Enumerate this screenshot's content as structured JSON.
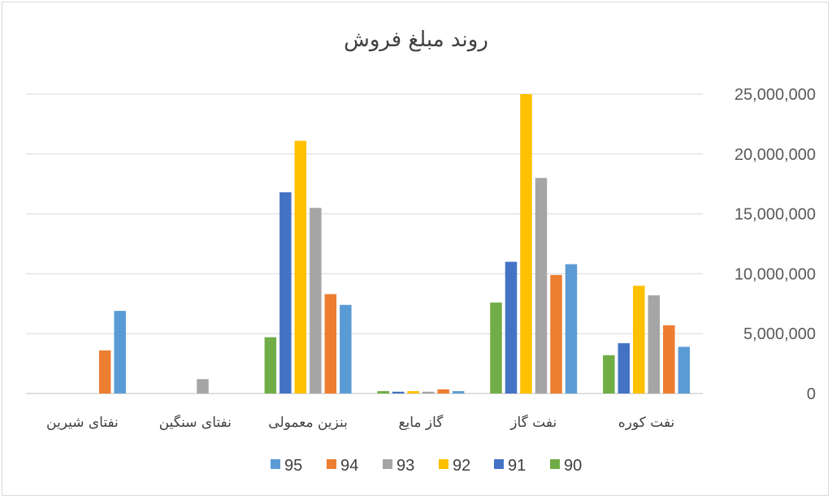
{
  "chart_data": {
    "type": "bar",
    "title": "روند مبلغ فروش",
    "xlabel": "",
    "ylabel": "",
    "ylim": [
      0,
      25000000
    ],
    "y_ticks": [
      "0",
      "5,000,000",
      "10,000,000",
      "15,000,000",
      "20,000,000",
      "25,000,000"
    ],
    "y_axis_side": "right",
    "x_axis_direction": "right-to-left",
    "grid": true,
    "legend_position": "bottom",
    "categories": [
      "نفت کوره",
      "نفت گاز",
      "گاز مایع",
      "بنزین معمولی",
      "نفتای سنگین",
      "نفتای شیرین"
    ],
    "series": [
      {
        "name": "90",
        "color": "#70ad47",
        "values": [
          3200000,
          7600000,
          200000,
          4700000,
          0,
          0
        ]
      },
      {
        "name": "91",
        "color": "#4472c4",
        "values": [
          4200000,
          11000000,
          150000,
          16800000,
          0,
          0
        ]
      },
      {
        "name": "92",
        "color": "#ffc000",
        "values": [
          9000000,
          25000000,
          200000,
          21100000,
          0,
          0
        ]
      },
      {
        "name": "93",
        "color": "#a5a5a5",
        "values": [
          8200000,
          18000000,
          150000,
          15500000,
          1200000,
          0
        ]
      },
      {
        "name": "94",
        "color": "#ed7d31",
        "values": [
          5700000,
          9900000,
          350000,
          8300000,
          0,
          3600000
        ]
      },
      {
        "name": "95",
        "color": "#5b9bd5",
        "values": [
          3900000,
          10800000,
          200000,
          7400000,
          0,
          6900000
        ]
      }
    ],
    "legend_order": [
      "95",
      "94",
      "93",
      "92",
      "91",
      "90"
    ]
  }
}
